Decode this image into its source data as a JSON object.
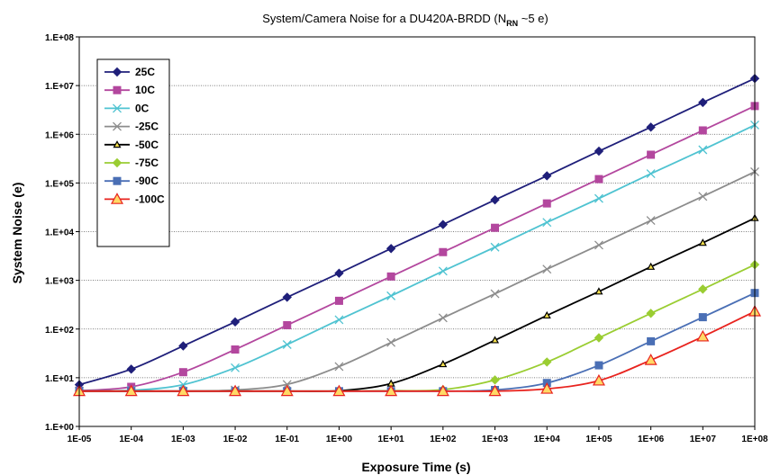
{
  "chart_data": {
    "type": "line",
    "title": "System/Camera Noise for a DU420A-BRDD (N",
    "title_sub": "RN",
    "title_end": " ~5 e)",
    "xlabel": "Exposure Time (s)",
    "ylabel": "System Noise (e)",
    "x_scale": "log",
    "y_scale": "log",
    "xlim": [
      1e-05,
      100000000
    ],
    "ylim": [
      1,
      100000000
    ],
    "x_tick_labels": [
      "1E-05",
      "1E-04",
      "1E-03",
      "1E-02",
      "1E-01",
      "1E+00",
      "1E+01",
      "1E+02",
      "1E+03",
      "1E+04",
      "1E+05",
      "1E+06",
      "1E+07",
      "1E+08"
    ],
    "y_tick_labels": [
      "1.E+00",
      "1.E+01",
      "1.E+02",
      "1.E+03",
      "1.E+04",
      "1.E+05",
      "1.E+06",
      "1.E+07",
      "1.E+08"
    ],
    "grid": "horizontal",
    "legend_position": "top-left",
    "x": [
      1e-05,
      0.0001,
      0.001,
      0.01,
      0.1,
      1,
      10,
      100,
      1000,
      10000,
      100000,
      1000000,
      10000000,
      100000000
    ],
    "series": [
      {
        "name": "25C",
        "color": "#1f1f7a",
        "marker": "diamond",
        "values": [
          7.2,
          15,
          45,
          140,
          450,
          1400,
          4500,
          14000,
          45000,
          140000,
          450000,
          1400000,
          4500000,
          14000000
        ]
      },
      {
        "name": "10C",
        "color": "#b3479e",
        "marker": "square",
        "values": [
          5.4,
          6.5,
          13,
          38,
          120,
          380,
          1200,
          3800,
          12000,
          38000,
          120000,
          380000,
          1200000,
          3800000
        ]
      },
      {
        "name": "0C",
        "color": "#4fc3d1",
        "marker": "x",
        "values": [
          5.3,
          5.5,
          7.2,
          16,
          48,
          155,
          480,
          1550,
          4800,
          15500,
          48000,
          155000,
          480000,
          1550000
        ]
      },
      {
        "name": "-25C",
        "color": "#8c8c8c",
        "marker": "x",
        "values": [
          5.3,
          5.3,
          5.3,
          5.6,
          7.3,
          17,
          53,
          170,
          530,
          1700,
          5300,
          17000,
          53000,
          170000
        ]
      },
      {
        "name": "-50C",
        "color": "#000000",
        "marker": "triangle",
        "values": [
          5.3,
          5.3,
          5.3,
          5.3,
          5.3,
          5.4,
          7.6,
          19,
          59,
          190,
          590,
          1900,
          5900,
          19000
        ]
      },
      {
        "name": "-75C",
        "color": "#9acd32",
        "marker": "diamond",
        "values": [
          5.3,
          5.3,
          5.3,
          5.3,
          5.3,
          5.3,
          5.4,
          5.7,
          9,
          21,
          66,
          210,
          660,
          2100
        ]
      },
      {
        "name": "-90C",
        "color": "#4a6fb5",
        "marker": "square",
        "values": [
          5.3,
          5.3,
          5.3,
          5.3,
          5.3,
          5.3,
          5.3,
          5.3,
          5.6,
          7.8,
          18,
          56,
          175,
          550
        ]
      },
      {
        "name": "-100C",
        "color": "#e8231e",
        "marker": "triangle",
        "values": [
          5.3,
          5.3,
          5.3,
          5.3,
          5.3,
          5.3,
          5.3,
          5.3,
          5.3,
          5.9,
          8.7,
          23,
          70,
          230
        ]
      }
    ]
  }
}
